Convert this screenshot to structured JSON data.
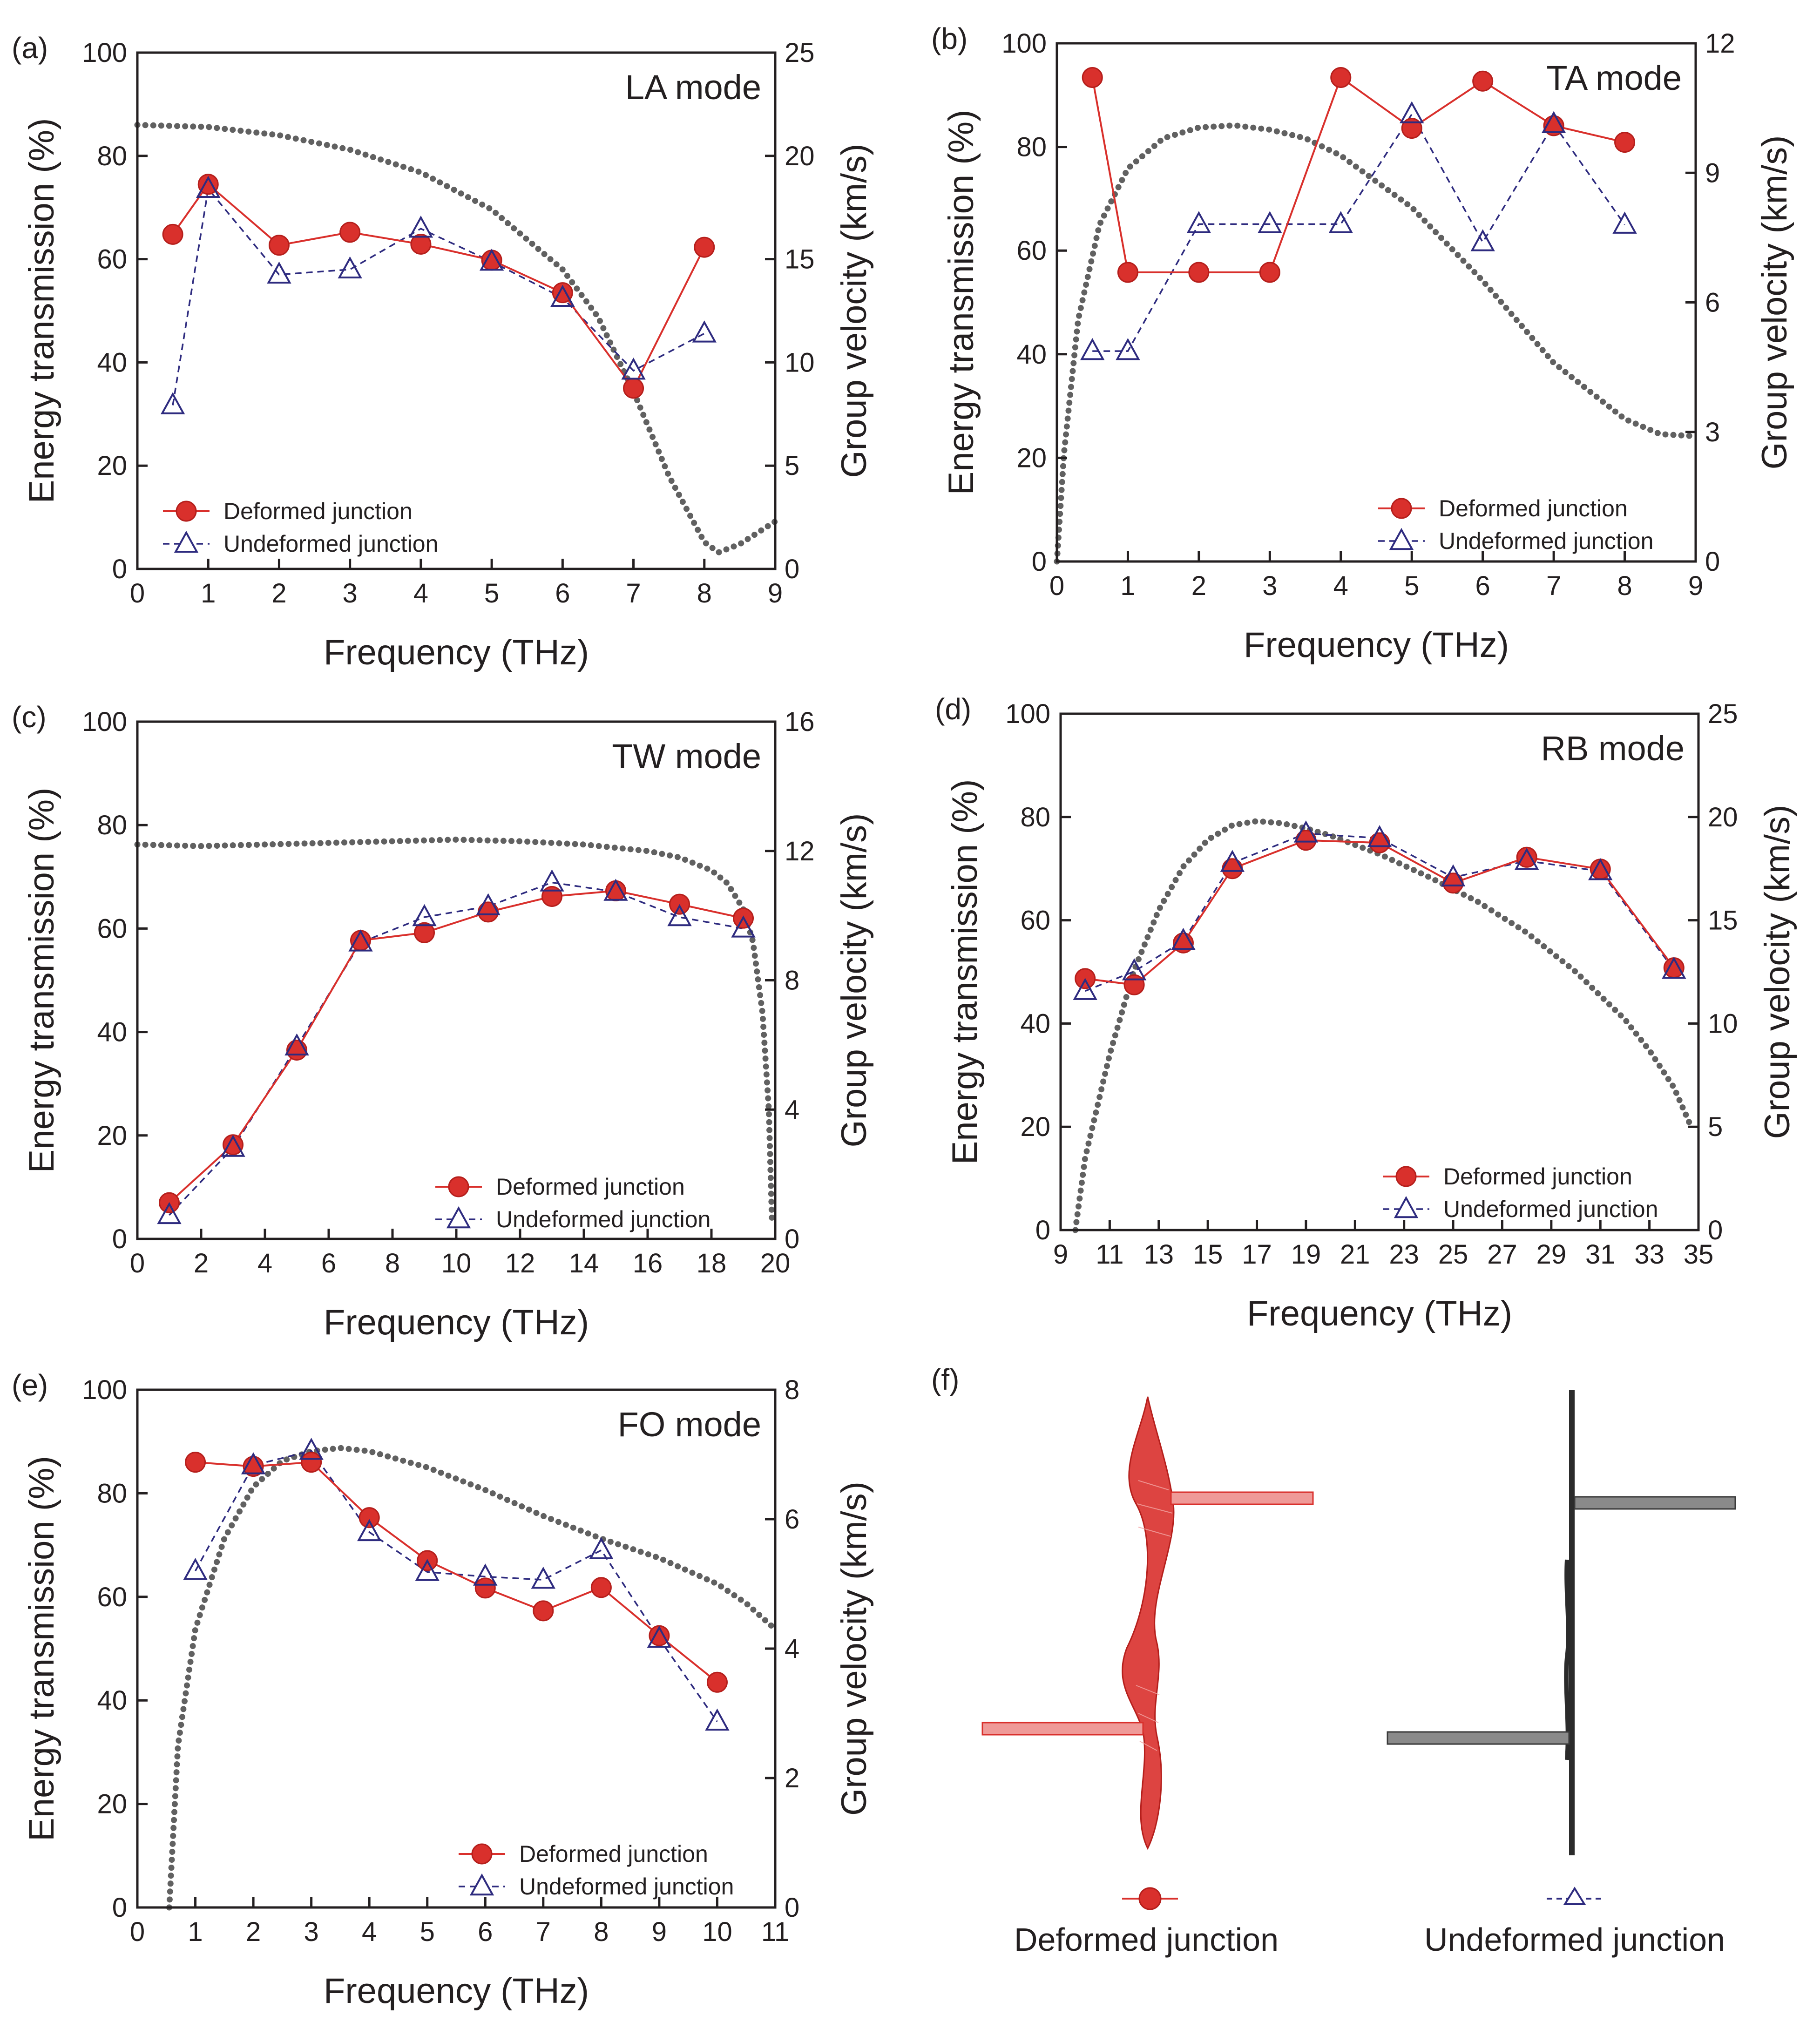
{
  "colors": {
    "deformed": "#d9302c",
    "undeformed": "#2e2b7f",
    "velocity": "#616161",
    "axis": "#231f20",
    "undeformed_ribbon": "#3a3a3a"
  },
  "legend": {
    "deformed": "Deformed junction",
    "undeformed": "Undeformed junction"
  },
  "chart_data": [
    {
      "panel": "(a)",
      "title": "LA mode",
      "type": "line",
      "xlabel": "Frequency (THz)",
      "ylabel": "Energy transmission (%)",
      "y2label": "Group velocity (km/s)",
      "xlim": [
        0,
        9
      ],
      "ylim": [
        0,
        100
      ],
      "y2lim": [
        0,
        25
      ],
      "xticks": [
        0,
        1,
        2,
        3,
        4,
        5,
        6,
        7,
        8,
        9
      ],
      "yticks": [
        0,
        20,
        40,
        60,
        80,
        100
      ],
      "y2ticks": [
        0,
        5,
        10,
        15,
        20,
        25
      ],
      "series": [
        {
          "name": "Deformed junction",
          "x": [
            0.5,
            1,
            2,
            3,
            4,
            5,
            6,
            7,
            8
          ],
          "values": [
            64.8,
            74.5,
            62.7,
            65.2,
            62.9,
            59.8,
            53.5,
            35.0,
            62.3
          ]
        },
        {
          "name": "Undeformed junction",
          "x": [
            0.5,
            1,
            2,
            3,
            4,
            5,
            6,
            7,
            8
          ],
          "values": [
            31.7,
            73.6,
            57.0,
            58.0,
            65.9,
            59.5,
            52.5,
            38.4,
            45.6
          ]
        }
      ],
      "group_velocity": {
        "x": [
          0,
          1,
          2,
          3,
          4,
          5,
          6,
          6.5,
          7,
          7.5,
          8,
          8.2,
          8.5,
          9
        ],
        "values": [
          21.5,
          21.4,
          21.0,
          20.3,
          19.2,
          17.4,
          14.5,
          12.2,
          8.6,
          4.5,
          1.3,
          0.8,
          1.2,
          2.3
        ]
      }
    },
    {
      "panel": "(b)",
      "title": "TA mode",
      "type": "line",
      "xlabel": "Frequency (THz)",
      "ylabel": "Energy transmission (%)",
      "y2label": "Group velocity (km/s)",
      "xlim": [
        0,
        9
      ],
      "ylim": [
        0,
        100
      ],
      "y2lim": [
        0,
        12
      ],
      "xticks": [
        0,
        1,
        2,
        3,
        4,
        5,
        6,
        7,
        8,
        9
      ],
      "yticks": [
        0,
        20,
        40,
        60,
        80,
        100
      ],
      "y2ticks": [
        0,
        3,
        6,
        9,
        12
      ],
      "series": [
        {
          "name": "Deformed junction",
          "x": [
            0.5,
            1,
            2,
            3,
            4,
            5,
            6,
            7,
            8
          ],
          "values": [
            93.4,
            55.8,
            55.8,
            55.8,
            93.4,
            83.6,
            92.7,
            84.1,
            80.9
          ]
        },
        {
          "name": "Undeformed junction",
          "x": [
            0.5,
            1,
            2,
            3,
            4,
            5,
            6,
            7,
            8
          ],
          "values": [
            40.6,
            40.6,
            65.1,
            65.1,
            65.1,
            86.3,
            61.6,
            84.4,
            65.0
          ]
        }
      ],
      "group_velocity": {
        "x": [
          0,
          0.1,
          0.3,
          0.6,
          1,
          1.5,
          2,
          2.5,
          3,
          3.5,
          4,
          5,
          6,
          7,
          8,
          8.5,
          9
        ],
        "values": [
          0,
          2.5,
          5.6,
          7.8,
          9.1,
          9.8,
          10.05,
          10.1,
          10.0,
          9.8,
          9.4,
          8.2,
          6.5,
          4.6,
          3.3,
          2.95,
          2.9
        ]
      }
    },
    {
      "panel": "(c)",
      "title": "TW mode",
      "type": "line",
      "xlabel": "Frequency (THz)",
      "ylabel": "Energy transmission (%)",
      "y2label": "Group velocity (km/s)",
      "xlim": [
        0,
        20
      ],
      "ylim": [
        0,
        100
      ],
      "y2lim": [
        0,
        16
      ],
      "xticks": [
        0,
        2,
        4,
        6,
        8,
        10,
        12,
        14,
        16,
        18,
        20
      ],
      "yticks": [
        0,
        20,
        40,
        60,
        80,
        100
      ],
      "y2ticks": [
        0,
        4,
        8,
        12,
        16
      ],
      "series": [
        {
          "name": "Deformed junction",
          "x": [
            1,
            3,
            5,
            7,
            9,
            11,
            13,
            15,
            17,
            19
          ],
          "values": [
            7.0,
            18.2,
            36.5,
            57.7,
            59.2,
            63.2,
            66.2,
            67.3,
            64.7,
            62.0
          ]
        },
        {
          "name": "Undeformed junction",
          "x": [
            1,
            3,
            5,
            7,
            9,
            11,
            13,
            15,
            17,
            19
          ],
          "values": [
            4.6,
            17.6,
            37.2,
            57.3,
            62.2,
            64.3,
            68.9,
            67.1,
            62.2,
            60.0
          ]
        }
      ],
      "group_velocity": {
        "x": [
          0,
          2,
          4,
          6,
          8,
          10,
          12,
          14,
          16,
          17,
          18,
          18.5,
          19,
          19.3,
          19.6,
          19.8,
          19.9
        ],
        "values": [
          12.2,
          12.15,
          12.2,
          12.25,
          12.3,
          12.35,
          12.3,
          12.2,
          12.0,
          11.8,
          11.4,
          11.0,
          10.2,
          9.2,
          7.0,
          4.0,
          0.5
        ]
      }
    },
    {
      "panel": "(d)",
      "title": "RB mode",
      "type": "line",
      "xlabel": "Frequency (THz)",
      "ylabel": "Energy transmission (%)",
      "y2label": "Group velocity (km/s)",
      "xlim": [
        9,
        35
      ],
      "ylim": [
        0,
        100
      ],
      "y2lim": [
        0,
        25
      ],
      "xticks": [
        9,
        11,
        13,
        15,
        17,
        19,
        21,
        23,
        25,
        27,
        29,
        31,
        33,
        35
      ],
      "yticks": [
        0,
        20,
        40,
        60,
        80,
        100
      ],
      "y2ticks": [
        0,
        5,
        10,
        15,
        20,
        25
      ],
      "series": [
        {
          "name": "Deformed junction",
          "x": [
            10,
            12,
            14,
            16,
            19,
            22,
            25,
            28,
            31,
            34
          ],
          "values": [
            48.7,
            47.5,
            55.6,
            70.0,
            75.5,
            75.0,
            67.2,
            72.2,
            69.9,
            50.8
          ]
        },
        {
          "name": "Undeformed junction",
          "x": [
            10,
            12,
            14,
            16,
            19,
            22,
            25,
            28,
            31,
            34
          ],
          "values": [
            46.3,
            50.1,
            56.0,
            71.1,
            76.8,
            75.9,
            68.3,
            71.5,
            69.5,
            50.4
          ]
        }
      ],
      "group_velocity": {
        "x": [
          9.6,
          10,
          11,
          12,
          13,
          14,
          15,
          16,
          17,
          18,
          19,
          20,
          22,
          24,
          26,
          28,
          30,
          32,
          33,
          34,
          34.7
        ],
        "values": [
          0,
          3.5,
          8.5,
          12.6,
          15.5,
          17.6,
          18.9,
          19.6,
          19.8,
          19.7,
          19.45,
          19.1,
          18.2,
          17.1,
          15.9,
          14.4,
          12.5,
          10.2,
          8.7,
          6.9,
          5.0
        ]
      }
    },
    {
      "panel": "(e)",
      "title": "FO mode",
      "type": "line",
      "xlabel": "Frequency (THz)",
      "ylabel": "Energy transmission (%)",
      "y2label": "Group velocity (km/s)",
      "xlim": [
        0,
        11
      ],
      "ylim": [
        0,
        100
      ],
      "y2lim": [
        0,
        8
      ],
      "xticks": [
        0,
        1,
        2,
        3,
        4,
        5,
        6,
        7,
        8,
        9,
        10,
        11
      ],
      "yticks": [
        0,
        20,
        40,
        60,
        80,
        100
      ],
      "y2ticks": [
        0,
        2,
        4,
        6,
        8
      ],
      "series": [
        {
          "name": "Deformed junction",
          "x": [
            1,
            2,
            3,
            4,
            5,
            6,
            7,
            8,
            9,
            10
          ],
          "values": [
            86.0,
            85.2,
            86.0,
            75.3,
            67.0,
            61.7,
            57.3,
            61.8,
            52.5,
            43.5
          ]
        },
        {
          "name": "Undeformed junction",
          "x": [
            1,
            2,
            3,
            4,
            5,
            6,
            7,
            8,
            9,
            10
          ],
          "values": [
            65.0,
            85.4,
            88.2,
            72.5,
            64.8,
            63.9,
            63.3,
            69.0,
            51.9,
            35.9
          ]
        }
      ],
      "group_velocity": {
        "x": [
          0.55,
          0.7,
          1.0,
          1.5,
          2,
          2.5,
          3,
          3.5,
          4,
          5,
          6,
          7,
          8,
          9,
          10,
          10.5,
          11
        ],
        "values": [
          0,
          2.5,
          4.3,
          5.7,
          6.5,
          6.9,
          7.05,
          7.1,
          7.05,
          6.8,
          6.45,
          6.05,
          5.7,
          5.4,
          5.0,
          4.7,
          4.3
        ]
      }
    }
  ],
  "panel_f": {
    "label": "(f)",
    "deformed_caption": "Deformed junction",
    "undeformed_caption": "Undeformed junction"
  }
}
